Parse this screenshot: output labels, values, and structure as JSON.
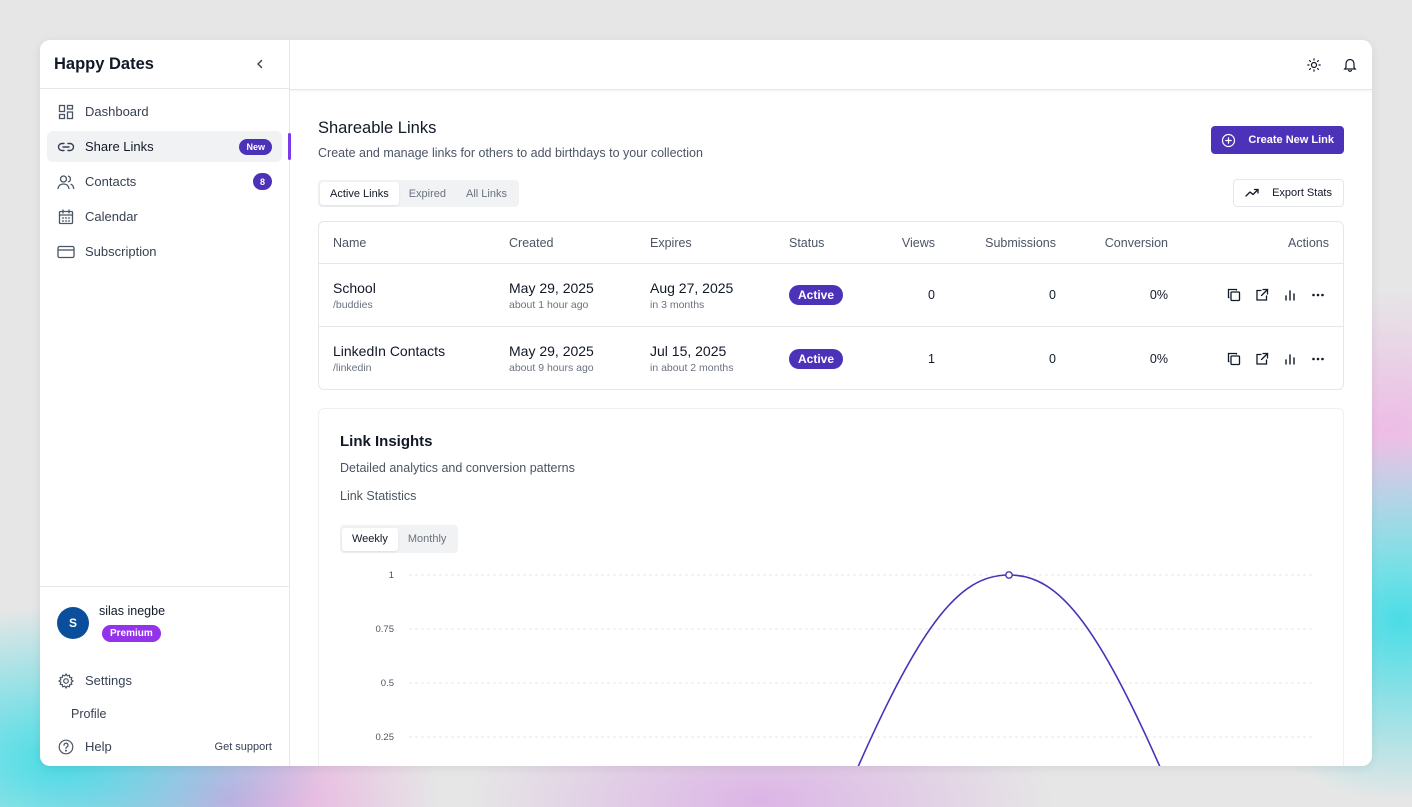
{
  "app": {
    "title": "Happy Dates"
  },
  "sidebar": {
    "items": [
      {
        "label": "Dashboard",
        "icon": "dashboard-icon"
      },
      {
        "label": "Share Links",
        "icon": "link-icon",
        "badge": "New",
        "active": true
      },
      {
        "label": "Contacts",
        "icon": "users-icon",
        "badge": "8"
      },
      {
        "label": "Calendar",
        "icon": "calendar-icon"
      },
      {
        "label": "Subscription",
        "icon": "credit-card-icon"
      }
    ],
    "user": {
      "initial": "S",
      "name": "silas inegbe",
      "plan": "Premium"
    },
    "bottom": {
      "settings": "Settings",
      "profile": "Profile",
      "help": "Help",
      "support": "Get support"
    }
  },
  "topbar": {
    "icons": [
      "sun-icon",
      "bell-icon"
    ]
  },
  "page": {
    "title": "Shareable Links",
    "subtitle": "Create and manage links for others to add birthdays to your collection",
    "create_label": "Create New Link",
    "export_label": "Export Stats",
    "tabs": [
      "Active Links",
      "Expired",
      "All Links"
    ],
    "active_tab": "Active Links"
  },
  "table": {
    "columns": [
      "Name",
      "Created",
      "Expires",
      "Status",
      "Views",
      "Submissions",
      "Conversion",
      "Actions"
    ],
    "rows": [
      {
        "name": "School",
        "slug": "/buddies",
        "created": "May 29, 2025",
        "created_rel": "about 1 hour ago",
        "expires": "Aug 27, 2025",
        "expires_rel": "in 3 months",
        "status": "Active",
        "views": "0",
        "submissions": "0",
        "conversion": "0%"
      },
      {
        "name": "LinkedIn Contacts",
        "slug": "/linkedin",
        "created": "May 29, 2025",
        "created_rel": "about 9 hours ago",
        "expires": "Jul 15, 2025",
        "expires_rel": "in about 2 months",
        "status": "Active",
        "views": "1",
        "submissions": "0",
        "conversion": "0%"
      }
    ]
  },
  "insights": {
    "title": "Link Insights",
    "subtitle": "Detailed analytics and conversion patterns",
    "section": "Link Statistics",
    "periods": [
      "Weekly",
      "Monthly"
    ],
    "active_period": "Weekly"
  },
  "chart_data": {
    "type": "line",
    "yticks": [
      "1",
      "0.75",
      "0.5",
      "0.25"
    ],
    "ylim": [
      0,
      1
    ],
    "grid": true,
    "series": [
      {
        "color": "#4c32b8",
        "peak_value": 1
      }
    ]
  },
  "colors": {
    "accent": "#4c32b8",
    "premium": "#9333ea",
    "avatar": "#0b4f9c"
  }
}
